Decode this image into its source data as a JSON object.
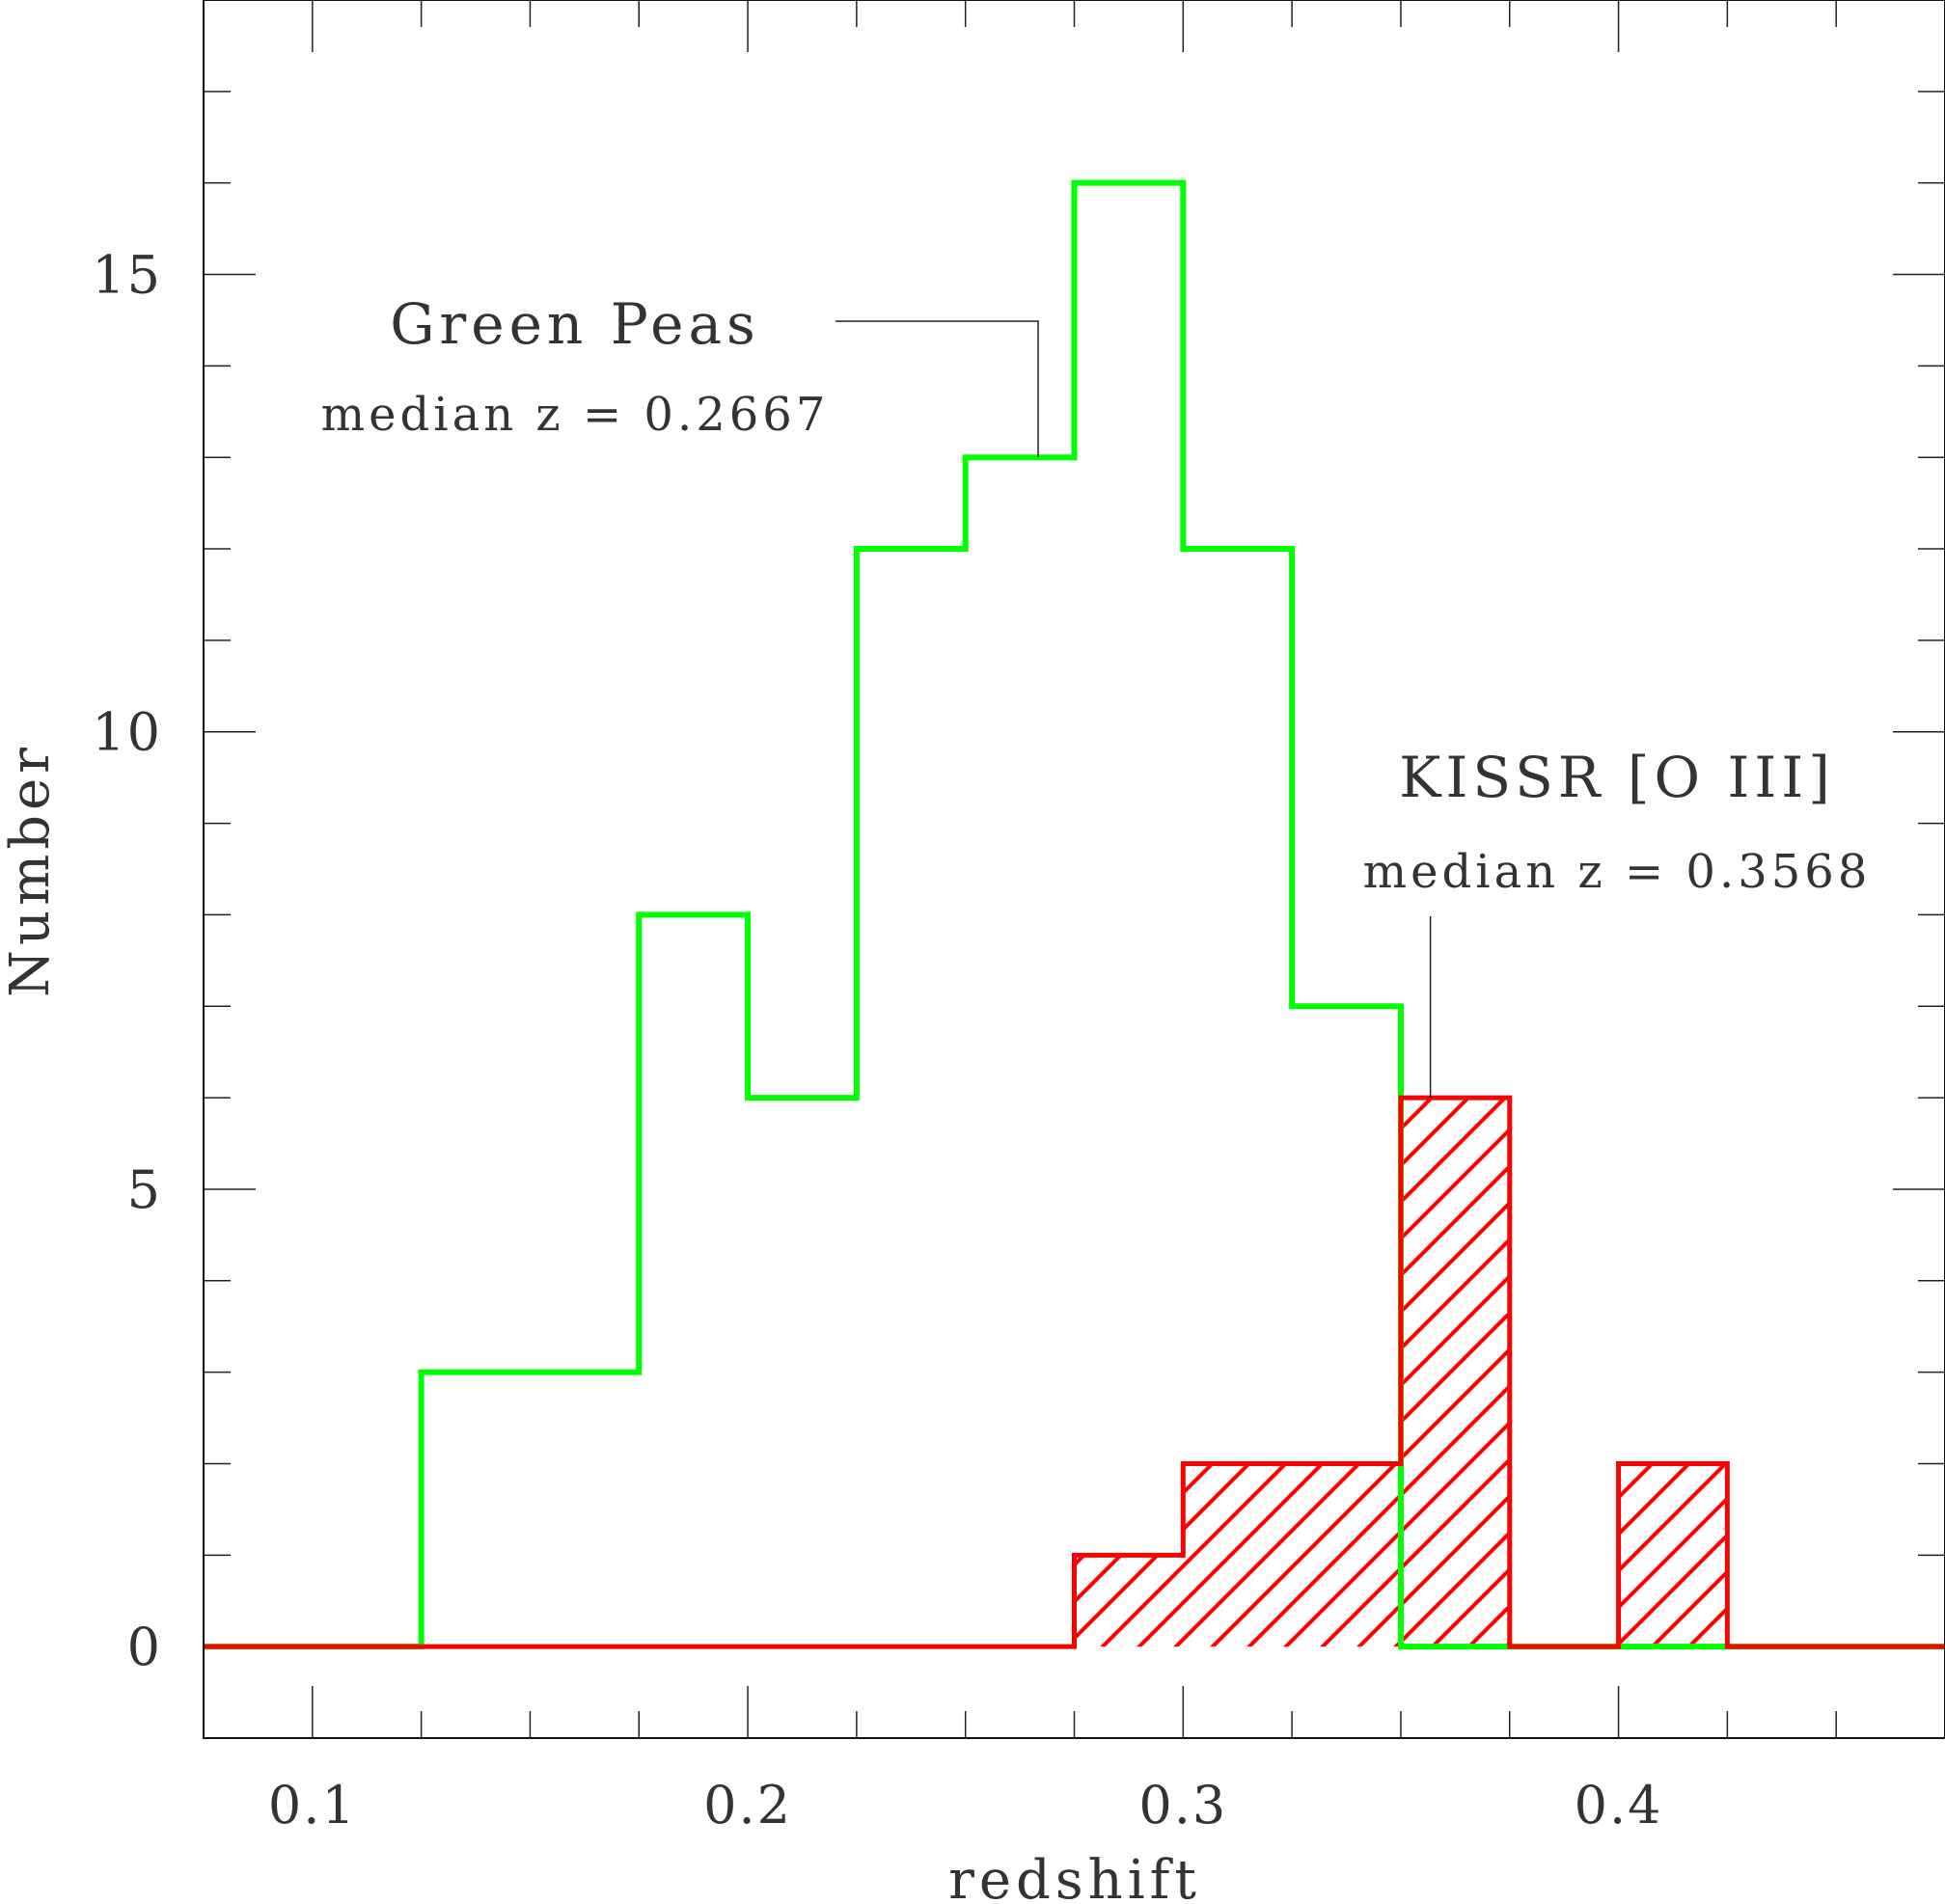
{
  "chart_data": {
    "type": "bar",
    "histogram": true,
    "xlabel": "redshift",
    "ylabel": "Number",
    "xlim": [
      0.075,
      0.475
    ],
    "ylim": [
      -1,
      18
    ],
    "bin_width": 0.025,
    "x_ticks": [
      "0.1",
      "0.2",
      "0.3",
      "0.4"
    ],
    "x_tick_values": [
      0.1,
      0.2,
      0.3,
      0.4
    ],
    "y_ticks": [
      "0",
      "5",
      "10",
      "15"
    ],
    "y_tick_values": [
      0,
      5,
      10,
      15
    ],
    "bin_edges": [
      0.075,
      0.1,
      0.125,
      0.15,
      0.175,
      0.2,
      0.225,
      0.25,
      0.275,
      0.3,
      0.325,
      0.35,
      0.375,
      0.4,
      0.425,
      0.45,
      0.475
    ],
    "series": [
      {
        "name": "Green Peas",
        "color": "#00ff00",
        "fill": "none",
        "values": [
          0,
          0,
          3,
          3,
          8,
          6,
          12,
          13,
          16,
          12,
          7,
          0,
          0,
          0,
          0,
          0
        ]
      },
      {
        "name": "KISSR [O III]",
        "color": "#ff0000",
        "fill": "hatched",
        "values": [
          0,
          0,
          0,
          0,
          0,
          0,
          0,
          0,
          1,
          2,
          2,
          6,
          0,
          2,
          0,
          0
        ]
      }
    ],
    "annotations": [
      {
        "name": "Green Peas",
        "text": "Green Peas",
        "subtext": "median z = 0.2667",
        "median": 0.2667,
        "pointer_y": 13
      },
      {
        "name": "KISSR [O III]",
        "text": "KISSR [O III]",
        "subtext": "median z = 0.3568",
        "median": 0.3568,
        "pointer_y": 6
      }
    ]
  }
}
